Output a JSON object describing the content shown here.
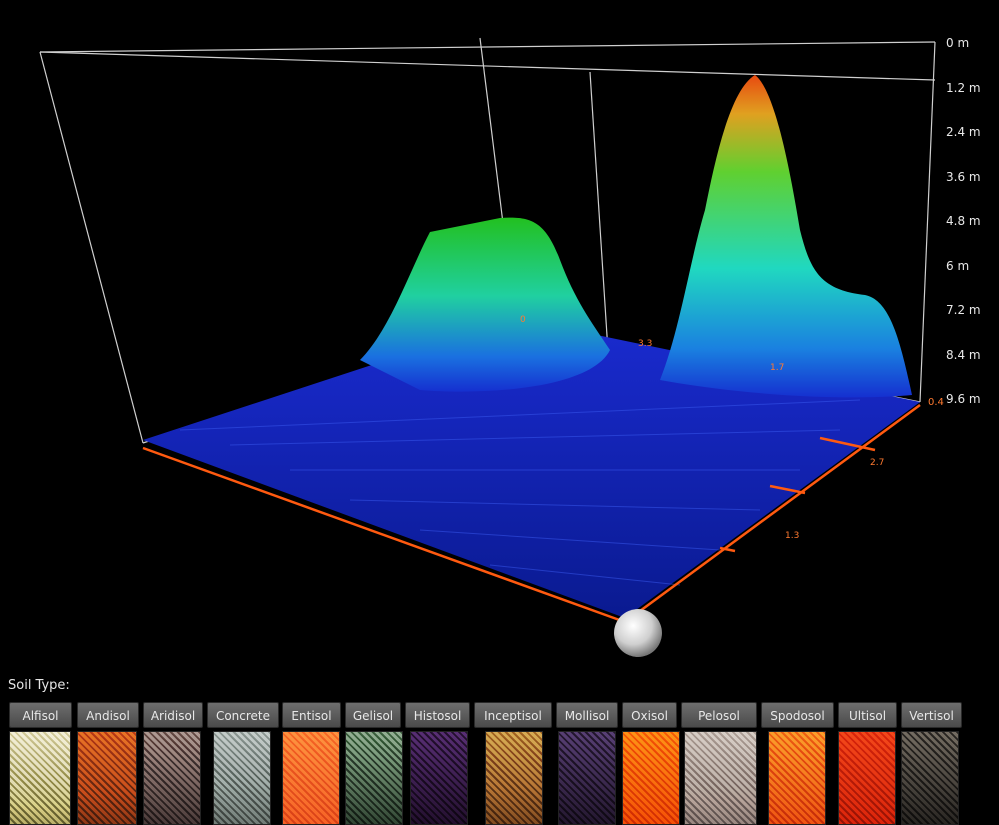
{
  "viewport": {
    "depth_labels": [
      "0 m",
      "1.2 m",
      "2.4 m",
      "3.6 m",
      "4.8 m",
      "6 m",
      "7.2 m",
      "8.4 m",
      "9.6 m"
    ],
    "axis_labels": {
      "back_0": "0",
      "back_1": "3.3",
      "back_2": "1.7",
      "right_0": "0.4",
      "right_1": "2.7",
      "right_2": "1.3"
    }
  },
  "soil_panel": {
    "title": "Soil Type:",
    "types": [
      {
        "label": "Alfisol",
        "color_a": "#d8d2b8",
        "color_b": "#6d6a48"
      },
      {
        "label": "Andisol",
        "color_a": "#c97a45",
        "color_b": "#5a3a28"
      },
      {
        "label": "Aridisol",
        "color_a": "#9a8e8a",
        "color_b": "#3d3434"
      },
      {
        "label": "Concrete",
        "color_a": "#a9afad",
        "color_b": "#555a57"
      },
      {
        "label": "Entisol",
        "color_a": "#f08a5a",
        "color_b": "#b85a35"
      },
      {
        "label": "Gelisol",
        "color_a": "#8a9a8a",
        "color_b": "#2e3a30"
      },
      {
        "label": "Histosol",
        "color_a": "#6a4d7a",
        "color_b": "#2a1a30"
      },
      {
        "label": "Inceptisol",
        "color_a": "#b89868",
        "color_b": "#5a4028"
      },
      {
        "label": "Mollisol",
        "color_a": "#6a5a7a",
        "color_b": "#2a2030"
      },
      {
        "label": "Oxisol",
        "color_a": "#f08a35",
        "color_b": "#b04a10"
      },
      {
        "label": "Pelosol",
        "color_a": "#b8b0aa",
        "color_b": "#6a6260"
      },
      {
        "label": "Spodosol",
        "color_a": "#e8904a",
        "color_b": "#a84a20"
      },
      {
        "label": "Ultisol",
        "color_a": "#d8603a",
        "color_b": "#8a3018"
      },
      {
        "label": "Vertisol",
        "color_a": "#7a7670",
        "color_b": "#2a2826"
      }
    ]
  }
}
